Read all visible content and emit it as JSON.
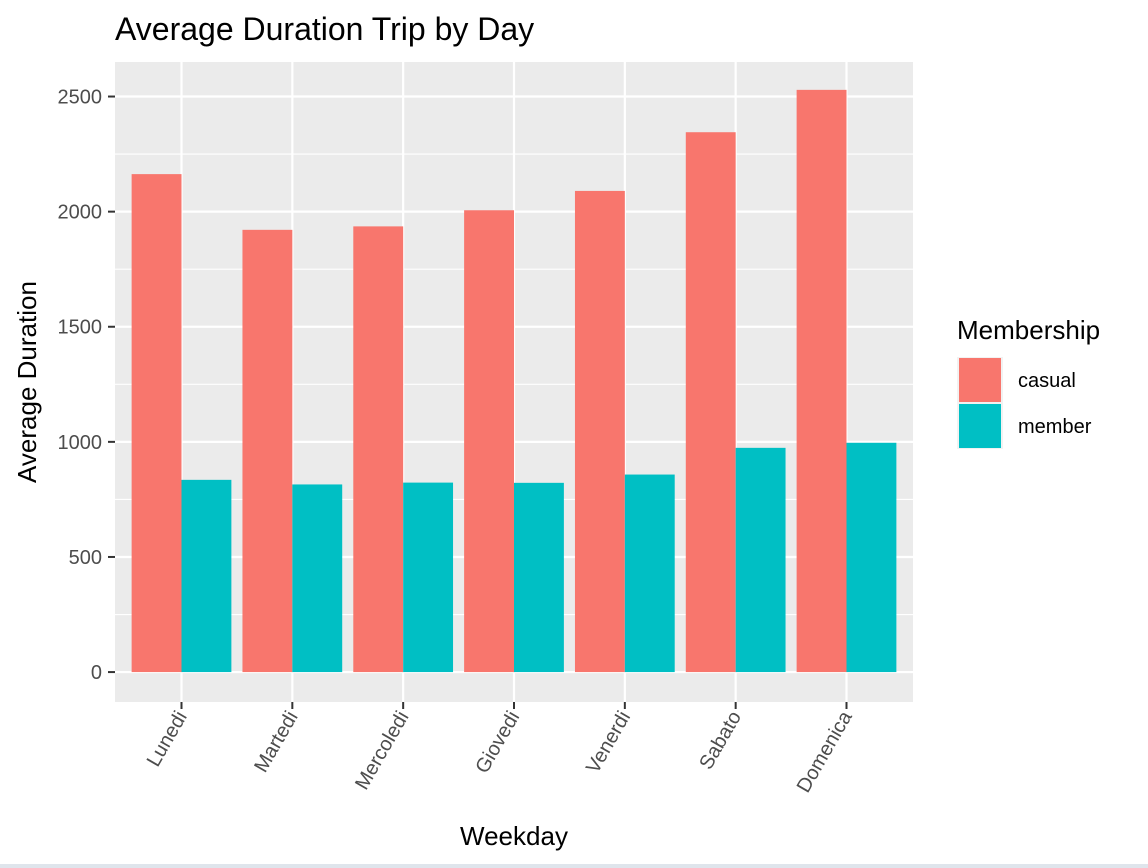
{
  "chart_data": {
    "type": "bar",
    "title": "Average Duration Trip by Day",
    "xlabel": "Weekday",
    "ylabel": "Average Duration",
    "categories": [
      "Lunedi",
      "Martedi",
      "Mercoledi",
      "Giovedi",
      "Venerdi",
      "Sabato",
      "Domenica"
    ],
    "series": [
      {
        "name": "casual",
        "color": "#F8766D",
        "values": [
          2163,
          1921,
          1936,
          2006,
          2090,
          2345,
          2529
        ]
      },
      {
        "name": "member",
        "color": "#00BFC4",
        "values": [
          835,
          815,
          823,
          822,
          858,
          974,
          996
        ]
      }
    ],
    "ylim": [
      -130,
      2650
    ],
    "yticks": [
      0,
      500,
      1000,
      1500,
      2000,
      2500
    ],
    "ytick_labels": [
      "0",
      "500",
      "1000",
      "1500",
      "2000",
      "2500"
    ],
    "grid": true,
    "panel_background": "#EBEBEB",
    "legend": {
      "title": "Membership",
      "position": "right"
    }
  }
}
